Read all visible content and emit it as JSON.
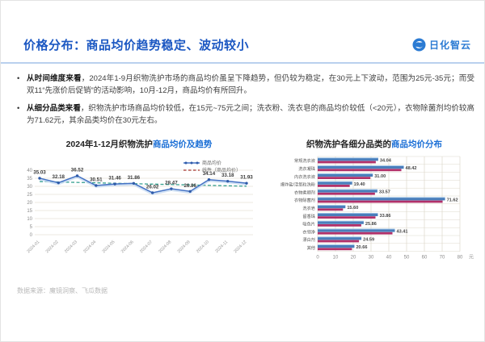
{
  "header": {
    "title": "价格分布：商品均价趋势稳定、波动较小",
    "logo_text": "日化智云"
  },
  "bullets": [
    {
      "lead": "从时间维度来看",
      "text": "，2024年1-9月织物洗护市场的商品均价虽呈下降趋势，但仍较为稳定，在30元上下波动，范围为25元-35元；而受双11“先涨价后促销”的活动影响，10月-12月，商品均价有所回升。"
    },
    {
      "lead": "从细分品类来看",
      "text": "，织物洗护市场商品均价较低，在15元~75元之间；洗衣粉、洗衣皂的商品均价较低（<20元），衣物除菌剂均价较高为71.62元，其余品类均价在30元左右。"
    }
  ],
  "footer": {
    "source": "数据来源：魔镜洞察、飞瓜数据"
  },
  "chart_data": [
    {
      "type": "line",
      "title_dark": "2024年1-12月织物洗护",
      "title_accent": "商品均价及趋势",
      "x": [
        "2024-01",
        "2024-02",
        "2024-03",
        "2024-04",
        "2024-05",
        "2024-06",
        "2024-07",
        "2024-08",
        "2024-09",
        "2024-10",
        "2024-11",
        "2024-12"
      ],
      "series": [
        {
          "name": "商品均价",
          "values": [
            35.03,
            32.18,
            36.52,
            30.51,
            31.46,
            31.86,
            26.02,
            28.47,
            26.86,
            34.14,
            33.18,
            31.93
          ],
          "labels": [
            "35.03",
            "32.18",
            "36.52",
            "30.51",
            "31.46",
            "31.86",
            "26.02",
            "28.47",
            "26.86",
            "34.14",
            "33.18",
            "31.93"
          ]
        }
      ],
      "trendline": {
        "name": "线性（商品均价）",
        "start": 32.95,
        "end": 30.07
      },
      "ylim": [
        0,
        40
      ],
      "ytick": 5,
      "grid": true,
      "legend_position": "top-right",
      "colors": {
        "line": "#4472c4",
        "marker": "#2e5aa8",
        "halo": "#c5d9f1",
        "trend": "#35a08f",
        "trend_legend": "#b4534f",
        "grid": "#e6e2d6",
        "axis_text": "#8a8a8a",
        "label_text": "#3a3a3a"
      }
    },
    {
      "type": "bar",
      "title_dark": "织物洗护各细分品类的",
      "title_accent": "商品均价分布",
      "categories": [
        "常规洗衣液",
        "洗衣凝珠",
        "内衣洗衣液",
        "爆炸盐/活氧粒洗粉",
        "衣物柔顺剂",
        "衣物除菌剂",
        "洗衣皂",
        "留香珠",
        "吸色片",
        "衣领净",
        "漂白剂",
        "其他"
      ],
      "values": [
        34.04,
        48.42,
        31.0,
        19.4,
        33.57,
        71.62,
        15.6,
        33.86,
        25.86,
        43.41,
        24.59,
        20.66
      ],
      "labels": [
        "34.04",
        "48.42",
        "31.00",
        "19.40",
        "33.57",
        "71.62",
        "15.60",
        "33.86",
        "25.86",
        "43.41",
        "24.59",
        "20.66"
      ],
      "xlim": [
        0,
        80
      ],
      "xtick": 10,
      "xlabel_unit": "元",
      "grid": true,
      "colors": {
        "bar": "#4a7ebb",
        "bar_top": "#9dc3e6",
        "bar2": "#b13069",
        "grid": "#ddd8cc",
        "axis_text": "#8a8a8a",
        "label_text": "#444444",
        "cat_text": "#555555"
      }
    }
  ]
}
